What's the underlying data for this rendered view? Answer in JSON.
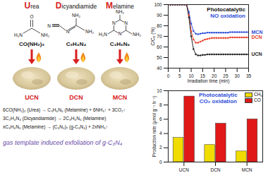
{
  "diagram": {
    "precursors": [
      {
        "name": "Urea",
        "formula": "CO(NH₂)₂",
        "atoms": [
          "O",
          "H₂N",
          "NH₂"
        ],
        "product": "UCN"
      },
      {
        "name": "Dicyandiamide",
        "formula": "C₂H₄N₄",
        "atoms": [
          "NH₂",
          "NH₂",
          "N",
          "N"
        ],
        "product": "DCN"
      },
      {
        "name": "Melamine",
        "formula": "C₃H₆N₆",
        "atoms": [
          "NH₂",
          "N",
          "N",
          "N",
          "H₂N",
          "NH₂"
        ],
        "product": "MCN"
      }
    ],
    "equations": [
      "6CO(NH₂)₂ (Urea) → C₃H₆N₆ (Melamine) + 6NH₃↑ + 3CO₂↑",
      "3C₂H₄N₄ (Dicyandiamide) → 2C₃H₆N₆ (Melamine)",
      "xC₃H₆N₆ (Melamine) → (C₃N₄)ₓ (g-C₃N₄) + 2xNH₃↑"
    ],
    "caption": "gas template induced exfoliation of g-C₃N₄"
  },
  "chart_data": [
    {
      "type": "line",
      "title": "Photocatalytic NO oxidation",
      "x_label": "Irradiation time (min)",
      "y_label": "C/C₀ (%)",
      "x": [
        0,
        1,
        2,
        3,
        4,
        5,
        6,
        7,
        8,
        9,
        10,
        11,
        12,
        13,
        14,
        15,
        16,
        17,
        18,
        19,
        20,
        21,
        22,
        23,
        24,
        25,
        26,
        27,
        28,
        29,
        30,
        31,
        32,
        33,
        34,
        35
      ],
      "series": [
        {
          "name": "MCN",
          "color": "#2f4fd8",
          "values": [
            100,
            100,
            100,
            100,
            100,
            100,
            100,
            100,
            100,
            93,
            82,
            75,
            72.5,
            72,
            72.5,
            73,
            73,
            73.5,
            73.5,
            73.5,
            73.5,
            73.5,
            73.5,
            73.5,
            73.5,
            73.5,
            73.5,
            74,
            74,
            74,
            74,
            74,
            74,
            74,
            74,
            74
          ]
        },
        {
          "name": "DCN",
          "color": "#e8402a",
          "values": [
            100,
            100,
            100,
            100,
            100,
            100,
            100,
            100,
            100,
            90,
            75,
            67,
            64,
            64,
            65,
            66,
            67,
            67.5,
            68,
            68.5,
            68.5,
            68.5,
            68.5,
            68.5,
            68.5,
            68.5,
            68.5,
            69,
            69,
            69,
            69,
            69,
            69,
            69,
            69,
            69
          ]
        },
        {
          "name": "UCN",
          "color": "#222222",
          "values": [
            100,
            100,
            100,
            100,
            100,
            100,
            100,
            100,
            100,
            88,
            70,
            58,
            53,
            52,
            52,
            52.5,
            52.5,
            53,
            53,
            53,
            53,
            53,
            53,
            53,
            53,
            53,
            53,
            53,
            53,
            53,
            53,
            53,
            53,
            53,
            53,
            53
          ]
        }
      ],
      "xlim": [
        0,
        35
      ],
      "xticks": [
        0,
        5,
        10,
        15,
        20,
        25,
        30,
        35
      ],
      "ylim": [
        40,
        100
      ],
      "yticks": [
        40,
        50,
        60,
        70,
        80,
        90,
        100
      ],
      "marker": "circle"
    },
    {
      "type": "bar",
      "title": "Photocatalytic CO₂ oxidation",
      "y_label": "Production rate (μmol g⁻¹ h⁻¹)",
      "categories": [
        "UCN",
        "DCN",
        "MCN"
      ],
      "series": [
        {
          "name": "CH₄",
          "color": "#f0dc00",
          "values": [
            3.4,
            2.4,
            1.5
          ]
        },
        {
          "name": "CO",
          "color": "#e01818",
          "values": [
            9.2,
            5.4,
            6.0
          ]
        }
      ],
      "ylim": [
        0,
        10
      ],
      "yticks": [
        0,
        2,
        4,
        6,
        8,
        10
      ],
      "legend": "top-right"
    }
  ]
}
